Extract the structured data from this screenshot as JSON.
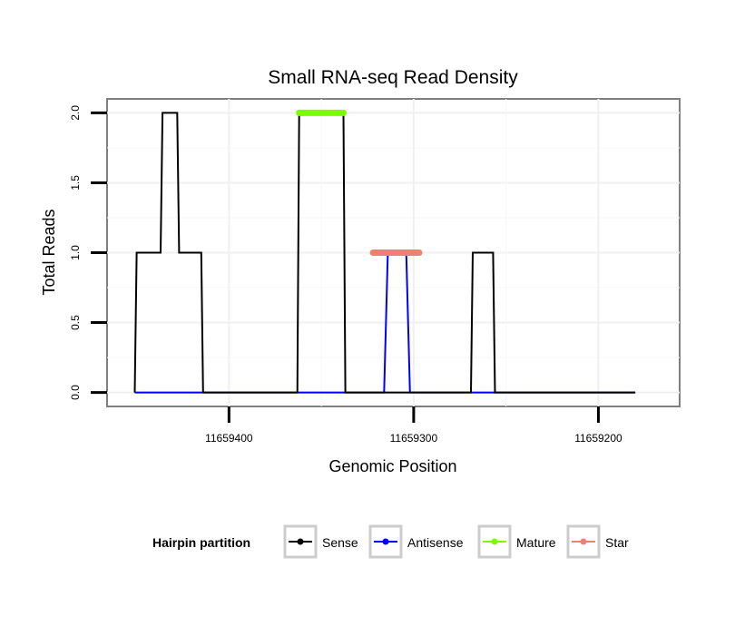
{
  "chart_data": {
    "type": "line",
    "title": "Small RNA-seq Read Density",
    "xlabel": "Genomic Position",
    "ylabel": "Total Reads",
    "x_reversed": true,
    "xlim": [
      11659466,
      11659156
    ],
    "ylim": [
      -0.1,
      2.1
    ],
    "x_ticks": [
      11659400,
      11659300,
      11659200
    ],
    "x_tick_labels": [
      "11659400",
      "11659300",
      "11659200"
    ],
    "y_ticks": [
      0,
      0.5,
      1,
      1.5,
      2
    ],
    "y_tick_labels": [
      "0.0",
      "0.5",
      "1.0",
      "1.5",
      "2.0"
    ],
    "grid": true,
    "legend": {
      "title": "Hairpin partition",
      "position": "bottom",
      "entries": [
        {
          "name": "Sense",
          "color": "#000000"
        },
        {
          "name": "Antisense",
          "color": "#0000FF"
        },
        {
          "name": "Mature",
          "color": "#7CFC00"
        },
        {
          "name": "Star",
          "color": "#F08070"
        }
      ]
    },
    "series": [
      {
        "name": "Antisense",
        "color": "#0000FF",
        "x": [
          11659451,
          11659316,
          11659314,
          11659304,
          11659302,
          11659180
        ],
        "y": [
          0,
          0,
          1,
          1,
          0,
          0
        ]
      },
      {
        "name": "Sense",
        "color": "#000000",
        "x": [
          11659451,
          11659450,
          11659437,
          11659436,
          11659428,
          11659427,
          11659415,
          11659414,
          11659363,
          11659362,
          11659338,
          11659337,
          11659269,
          11659268,
          11659257,
          11659256,
          11659180
        ],
        "y": [
          0,
          1,
          1,
          2,
          2,
          1,
          1,
          0,
          0,
          2,
          2,
          0,
          0,
          1,
          1,
          0,
          0
        ]
      },
      {
        "name": "Mature",
        "color": "#7CFC00",
        "x": [
          11659362,
          11659338
        ],
        "y": [
          2,
          2
        ]
      },
      {
        "name": "Star",
        "color": "#F08070",
        "x": [
          11659322,
          11659297
        ],
        "y": [
          1,
          1
        ]
      }
    ]
  }
}
